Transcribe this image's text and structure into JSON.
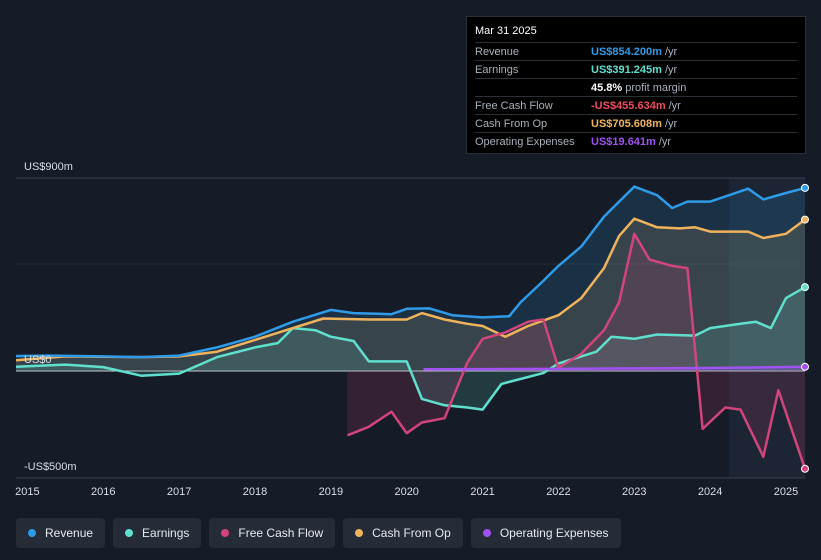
{
  "tooltip": {
    "date": "Mar 31 2025",
    "rows": [
      {
        "label": "Revenue",
        "value": "US$854.200m",
        "unit": "/yr",
        "color": "#2f9be8"
      },
      {
        "label": "Earnings",
        "value": "US$391.245m",
        "unit": "/yr",
        "color": "#5fe0cf"
      },
      {
        "label": "",
        "value": "45.8%",
        "unit": "profit margin",
        "color": "#ffffff"
      },
      {
        "label": "Free Cash Flow",
        "value": "-US$455.634m",
        "unit": "/yr",
        "color": "#ef4d5f"
      },
      {
        "label": "Cash From Op",
        "value": "US$705.608m",
        "unit": "/yr",
        "color": "#f0b35c"
      },
      {
        "label": "Operating Expenses",
        "value": "US$19.641m",
        "unit": "/yr",
        "color": "#a052f2"
      }
    ]
  },
  "legend": [
    {
      "label": "Revenue",
      "color": "#2f9be8"
    },
    {
      "label": "Earnings",
      "color": "#5fe0cf"
    },
    {
      "label": "Free Cash Flow",
      "color": "#d2457b"
    },
    {
      "label": "Cash From Op",
      "color": "#f0b35c"
    },
    {
      "label": "Operating Expenses",
      "color": "#a052f2"
    }
  ],
  "chart_data": {
    "type": "area",
    "y_unit": "US$m",
    "y_labels": [
      "US$900m",
      "US$0",
      "-US$500m"
    ],
    "ylim": [
      -500,
      900
    ],
    "xlim": [
      2014.85,
      2025.25
    ],
    "x_ticks": [
      "2015",
      "2016",
      "2017",
      "2018",
      "2019",
      "2020",
      "2021",
      "2022",
      "2023",
      "2024",
      "2025"
    ],
    "highlight_from": 2024.25,
    "series": [
      {
        "name": "Revenue",
        "color": "#2f9be8",
        "points": [
          [
            2014.85,
            70
          ],
          [
            2015.3,
            72
          ],
          [
            2016,
            68
          ],
          [
            2016.5,
            65
          ],
          [
            2017,
            72
          ],
          [
            2017.5,
            110
          ],
          [
            2018,
            160
          ],
          [
            2018.5,
            230
          ],
          [
            2019,
            285
          ],
          [
            2019.3,
            270
          ],
          [
            2019.8,
            265
          ],
          [
            2020,
            290
          ],
          [
            2020.3,
            292
          ],
          [
            2020.6,
            260
          ],
          [
            2021,
            250
          ],
          [
            2021.35,
            255
          ],
          [
            2021.5,
            320
          ],
          [
            2021.8,
            420
          ],
          [
            2022,
            490
          ],
          [
            2022.3,
            580
          ],
          [
            2022.6,
            720
          ],
          [
            2022.8,
            790
          ],
          [
            2023,
            860
          ],
          [
            2023.3,
            820
          ],
          [
            2023.5,
            760
          ],
          [
            2023.7,
            790
          ],
          [
            2024,
            790
          ],
          [
            2024.25,
            820
          ],
          [
            2024.5,
            850
          ],
          [
            2024.7,
            800
          ],
          [
            2025,
            830
          ],
          [
            2025.25,
            854
          ]
        ]
      },
      {
        "name": "Earnings",
        "color": "#5fe0cf",
        "points": [
          [
            2014.85,
            20
          ],
          [
            2015.5,
            30
          ],
          [
            2016,
            18
          ],
          [
            2016.5,
            -22
          ],
          [
            2017,
            -12
          ],
          [
            2017.5,
            65
          ],
          [
            2018,
            110
          ],
          [
            2018.3,
            130
          ],
          [
            2018.5,
            200
          ],
          [
            2018.8,
            190
          ],
          [
            2019,
            160
          ],
          [
            2019.3,
            140
          ],
          [
            2019.5,
            45
          ],
          [
            2020,
            45
          ],
          [
            2020.2,
            -130
          ],
          [
            2020.5,
            -160
          ],
          [
            2020.8,
            -170
          ],
          [
            2021,
            -180
          ],
          [
            2021.25,
            -60
          ],
          [
            2021.8,
            -10
          ],
          [
            2022,
            35
          ],
          [
            2022.5,
            90
          ],
          [
            2022.7,
            160
          ],
          [
            2023,
            150
          ],
          [
            2023.3,
            170
          ],
          [
            2023.8,
            165
          ],
          [
            2024,
            200
          ],
          [
            2024.4,
            220
          ],
          [
            2024.6,
            230
          ],
          [
            2024.8,
            200
          ],
          [
            2025,
            340
          ],
          [
            2025.25,
            391
          ]
        ]
      },
      {
        "name": "Free Cash Flow",
        "color": "#d2457b",
        "start": 2019.22,
        "points": [
          [
            2019.22,
            -300
          ],
          [
            2019.5,
            -260
          ],
          [
            2019.8,
            -190
          ],
          [
            2020,
            -290
          ],
          [
            2020.2,
            -240
          ],
          [
            2020.5,
            -220
          ],
          [
            2020.8,
            40
          ],
          [
            2021,
            150
          ],
          [
            2021.3,
            180
          ],
          [
            2021.6,
            230
          ],
          [
            2021.8,
            240
          ],
          [
            2022,
            15
          ],
          [
            2022.3,
            80
          ],
          [
            2022.6,
            190
          ],
          [
            2022.8,
            320
          ],
          [
            2023,
            640
          ],
          [
            2023.2,
            520
          ],
          [
            2023.5,
            490
          ],
          [
            2023.7,
            480
          ],
          [
            2023.9,
            -270
          ],
          [
            2024.2,
            -170
          ],
          [
            2024.4,
            -180
          ],
          [
            2024.7,
            -400
          ],
          [
            2024.9,
            -90
          ],
          [
            2025.25,
            -456
          ]
        ]
      },
      {
        "name": "Cash From Op",
        "color": "#f0b35c",
        "points": [
          [
            2014.85,
            50
          ],
          [
            2015.5,
            68
          ],
          [
            2016.5,
            65
          ],
          [
            2017,
            68
          ],
          [
            2017.5,
            90
          ],
          [
            2018,
            145
          ],
          [
            2018.5,
            200
          ],
          [
            2018.9,
            245
          ],
          [
            2019.5,
            240
          ],
          [
            2020,
            240
          ],
          [
            2020.2,
            270
          ],
          [
            2020.5,
            240
          ],
          [
            2020.8,
            220
          ],
          [
            2021,
            210
          ],
          [
            2021.3,
            160
          ],
          [
            2021.6,
            210
          ],
          [
            2022,
            260
          ],
          [
            2022.3,
            340
          ],
          [
            2022.6,
            480
          ],
          [
            2022.8,
            630
          ],
          [
            2023,
            710
          ],
          [
            2023.3,
            670
          ],
          [
            2023.6,
            665
          ],
          [
            2023.8,
            670
          ],
          [
            2024,
            650
          ],
          [
            2024.5,
            650
          ],
          [
            2024.7,
            620
          ],
          [
            2025,
            640
          ],
          [
            2025.25,
            706
          ]
        ]
      },
      {
        "name": "Operating Expenses",
        "color": "#a052f2",
        "start": 2020.22,
        "points": [
          [
            2020.22,
            8
          ],
          [
            2021,
            9
          ],
          [
            2022,
            10
          ],
          [
            2023,
            12
          ],
          [
            2024,
            14
          ],
          [
            2025.25,
            19.6
          ]
        ]
      }
    ]
  }
}
